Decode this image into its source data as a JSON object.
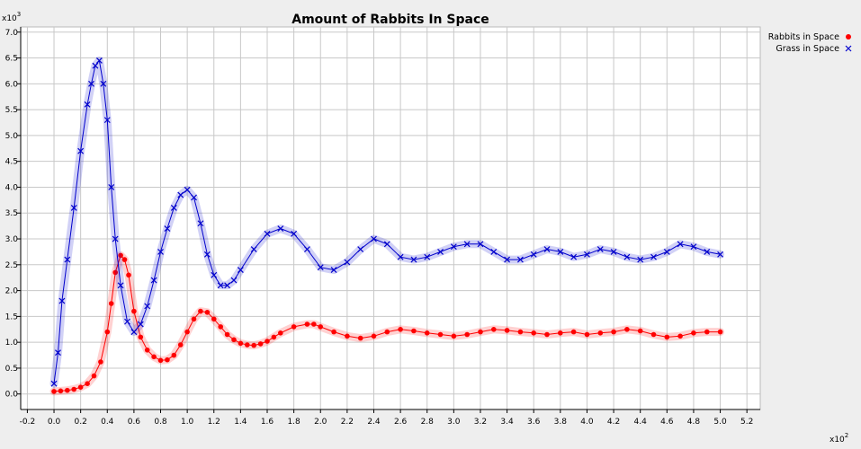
{
  "chart_data": {
    "type": "line",
    "title": "Amount of Rabbits In Space",
    "xlabel": "",
    "ylabel": "",
    "x_multiplier_label": "x10",
    "x_multiplier_exp": "2",
    "y_multiplier_label": "x10",
    "y_multiplier_exp": "3",
    "xlim": [
      -0.25,
      5.3
    ],
    "ylim": [
      -0.3,
      7.1
    ],
    "x_ticks": [
      "-0.2",
      "0.0",
      "0.2",
      "0.4",
      "0.6",
      "0.8",
      "1.0",
      "1.2",
      "1.4",
      "1.6",
      "1.8",
      "2.0",
      "2.2",
      "2.4",
      "2.6",
      "2.8",
      "3.0",
      "3.2",
      "3.4",
      "3.6",
      "3.8",
      "4.0",
      "4.2",
      "4.4",
      "4.6",
      "4.8",
      "5.0",
      "5.2"
    ],
    "y_ticks": [
      "0.0",
      "0.5",
      "1.0",
      "1.5",
      "2.0",
      "2.5",
      "3.0",
      "3.5",
      "4.0",
      "4.5",
      "5.0",
      "5.5",
      "6.0",
      "6.5",
      "7.0"
    ],
    "grid": true,
    "legend_position": "top-right",
    "series": [
      {
        "name": "Rabbits in Space",
        "color": "#ff0000",
        "marker": "circle",
        "x": [
          0.0,
          0.05,
          0.1,
          0.15,
          0.2,
          0.25,
          0.3,
          0.35,
          0.4,
          0.43,
          0.46,
          0.5,
          0.53,
          0.56,
          0.6,
          0.65,
          0.7,
          0.75,
          0.8,
          0.85,
          0.9,
          0.95,
          1.0,
          1.05,
          1.1,
          1.15,
          1.2,
          1.25,
          1.3,
          1.35,
          1.4,
          1.45,
          1.5,
          1.55,
          1.6,
          1.65,
          1.7,
          1.8,
          1.9,
          1.95,
          2.0,
          2.1,
          2.2,
          2.3,
          2.4,
          2.5,
          2.6,
          2.7,
          2.8,
          2.9,
          3.0,
          3.1,
          3.2,
          3.3,
          3.4,
          3.5,
          3.6,
          3.7,
          3.8,
          3.9,
          4.0,
          4.1,
          4.2,
          4.3,
          4.4,
          4.5,
          4.6,
          4.7,
          4.8,
          4.9,
          5.0
        ],
        "y": [
          0.05,
          0.06,
          0.07,
          0.09,
          0.13,
          0.2,
          0.35,
          0.62,
          1.2,
          1.75,
          2.35,
          2.68,
          2.6,
          2.3,
          1.6,
          1.1,
          0.85,
          0.72,
          0.65,
          0.66,
          0.75,
          0.95,
          1.2,
          1.45,
          1.6,
          1.58,
          1.45,
          1.3,
          1.15,
          1.05,
          0.98,
          0.95,
          0.94,
          0.97,
          1.02,
          1.1,
          1.18,
          1.3,
          1.35,
          1.35,
          1.3,
          1.2,
          1.12,
          1.08,
          1.12,
          1.2,
          1.25,
          1.22,
          1.18,
          1.15,
          1.12,
          1.15,
          1.2,
          1.25,
          1.23,
          1.2,
          1.18,
          1.15,
          1.18,
          1.2,
          1.15,
          1.18,
          1.2,
          1.25,
          1.22,
          1.15,
          1.1,
          1.12,
          1.18,
          1.2,
          1.2
        ]
      },
      {
        "name": "Grass in Space",
        "color": "#0000cc",
        "marker": "x",
        "x": [
          0.0,
          0.03,
          0.06,
          0.1,
          0.15,
          0.2,
          0.25,
          0.28,
          0.31,
          0.34,
          0.37,
          0.4,
          0.43,
          0.46,
          0.5,
          0.55,
          0.6,
          0.65,
          0.7,
          0.75,
          0.8,
          0.85,
          0.9,
          0.95,
          1.0,
          1.05,
          1.1,
          1.15,
          1.2,
          1.25,
          1.3,
          1.35,
          1.4,
          1.5,
          1.6,
          1.7,
          1.8,
          1.9,
          2.0,
          2.1,
          2.2,
          2.3,
          2.4,
          2.5,
          2.6,
          2.7,
          2.8,
          2.9,
          3.0,
          3.1,
          3.2,
          3.3,
          3.4,
          3.5,
          3.6,
          3.7,
          3.8,
          3.9,
          4.0,
          4.1,
          4.2,
          4.3,
          4.4,
          4.5,
          4.6,
          4.7,
          4.8,
          4.9,
          5.0
        ],
        "y": [
          0.2,
          0.8,
          1.8,
          2.6,
          3.6,
          4.7,
          5.6,
          6.0,
          6.35,
          6.45,
          6.0,
          5.3,
          4.0,
          3.0,
          2.1,
          1.4,
          1.2,
          1.35,
          1.7,
          2.2,
          2.75,
          3.2,
          3.6,
          3.85,
          3.95,
          3.8,
          3.3,
          2.7,
          2.3,
          2.1,
          2.1,
          2.2,
          2.4,
          2.8,
          3.1,
          3.2,
          3.1,
          2.8,
          2.45,
          2.4,
          2.55,
          2.8,
          3.0,
          2.9,
          2.65,
          2.6,
          2.65,
          2.75,
          2.85,
          2.9,
          2.9,
          2.75,
          2.6,
          2.6,
          2.7,
          2.8,
          2.75,
          2.65,
          2.7,
          2.8,
          2.75,
          2.65,
          2.6,
          2.65,
          2.75,
          2.9,
          2.85,
          2.75,
          2.7
        ]
      }
    ]
  }
}
